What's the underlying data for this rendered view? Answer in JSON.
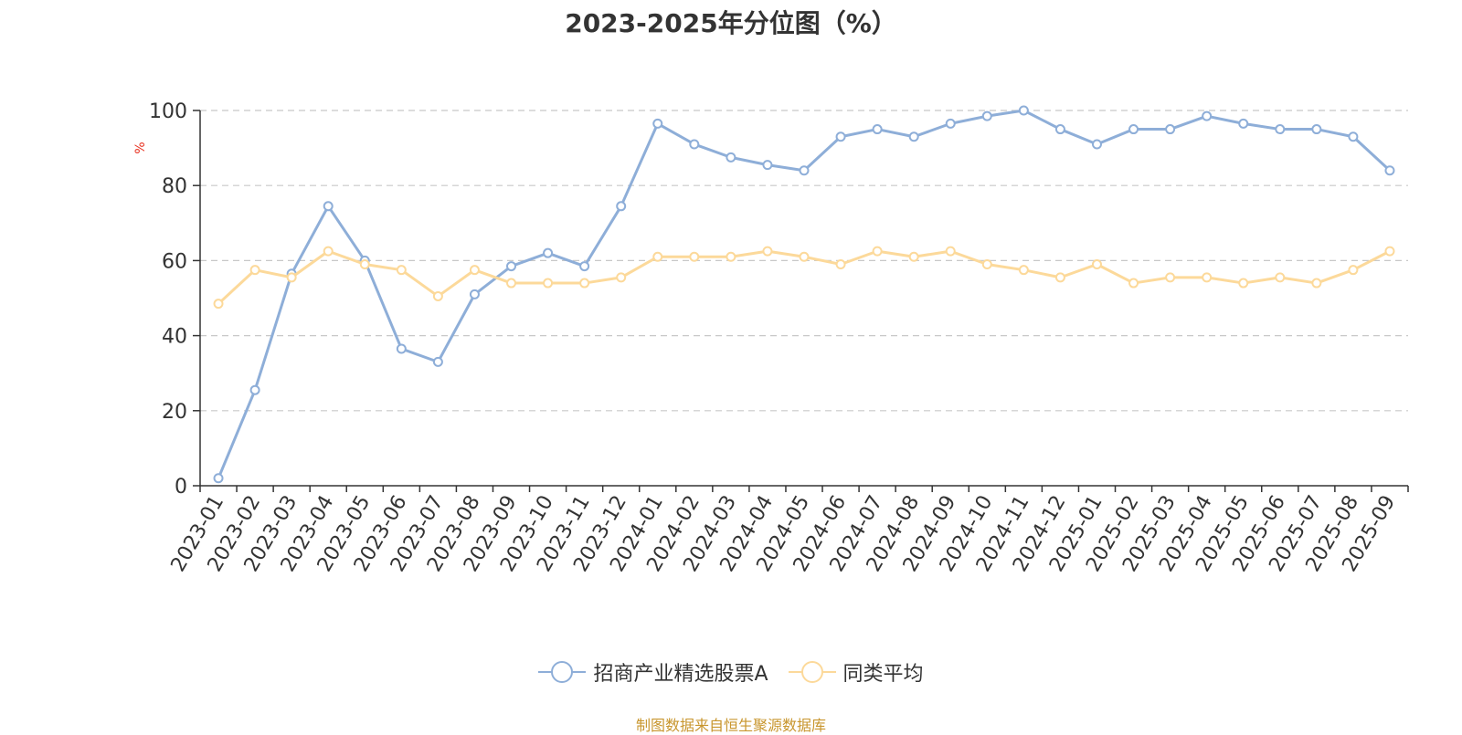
{
  "chart_data": {
    "type": "line",
    "title": "2023-2025年分位图（%）",
    "ylabel": "%",
    "xlabel": "",
    "ylim": [
      0,
      100
    ],
    "yticks": [
      0,
      20,
      40,
      60,
      80,
      100
    ],
    "grid": true,
    "legend_position": "bottom",
    "categories": [
      "2023-01",
      "2023-02",
      "2023-03",
      "2023-04",
      "2023-05",
      "2023-06",
      "2023-07",
      "2023-08",
      "2023-09",
      "2023-10",
      "2023-11",
      "2023-12",
      "2024-01",
      "2024-02",
      "2024-03",
      "2024-04",
      "2024-05",
      "2024-06",
      "2024-07",
      "2024-08",
      "2024-09",
      "2024-10",
      "2024-11",
      "2024-12",
      "2025-01",
      "2025-02",
      "2025-03",
      "2025-04",
      "2025-05",
      "2025-06",
      "2025-07",
      "2025-08",
      "2025-09"
    ],
    "series": [
      {
        "name": "招商产业精选股票A",
        "color": "#8eaed8",
        "values": [
          2,
          25.5,
          56.5,
          74.5,
          60,
          36.5,
          33,
          51,
          58.5,
          62,
          58.5,
          74.5,
          96.5,
          91,
          87.5,
          85.5,
          84,
          93,
          95,
          93,
          96.5,
          98.5,
          100,
          95,
          91,
          95,
          95,
          98.5,
          96.5,
          95,
          95,
          93,
          84
        ]
      },
      {
        "name": "同类平均",
        "color": "#fcd99a",
        "values": [
          48.5,
          57.5,
          55.5,
          62.5,
          59,
          57.5,
          50.5,
          57.5,
          54,
          54,
          54,
          55.5,
          61,
          61,
          61,
          62.5,
          61,
          59,
          62.5,
          61,
          62.5,
          59,
          57.5,
          55.5,
          59,
          54,
          55.5,
          55.5,
          54,
          55.5,
          54,
          57.5,
          62.5
        ]
      }
    ]
  },
  "source_note": "制图数据来自恒生聚源数据库"
}
